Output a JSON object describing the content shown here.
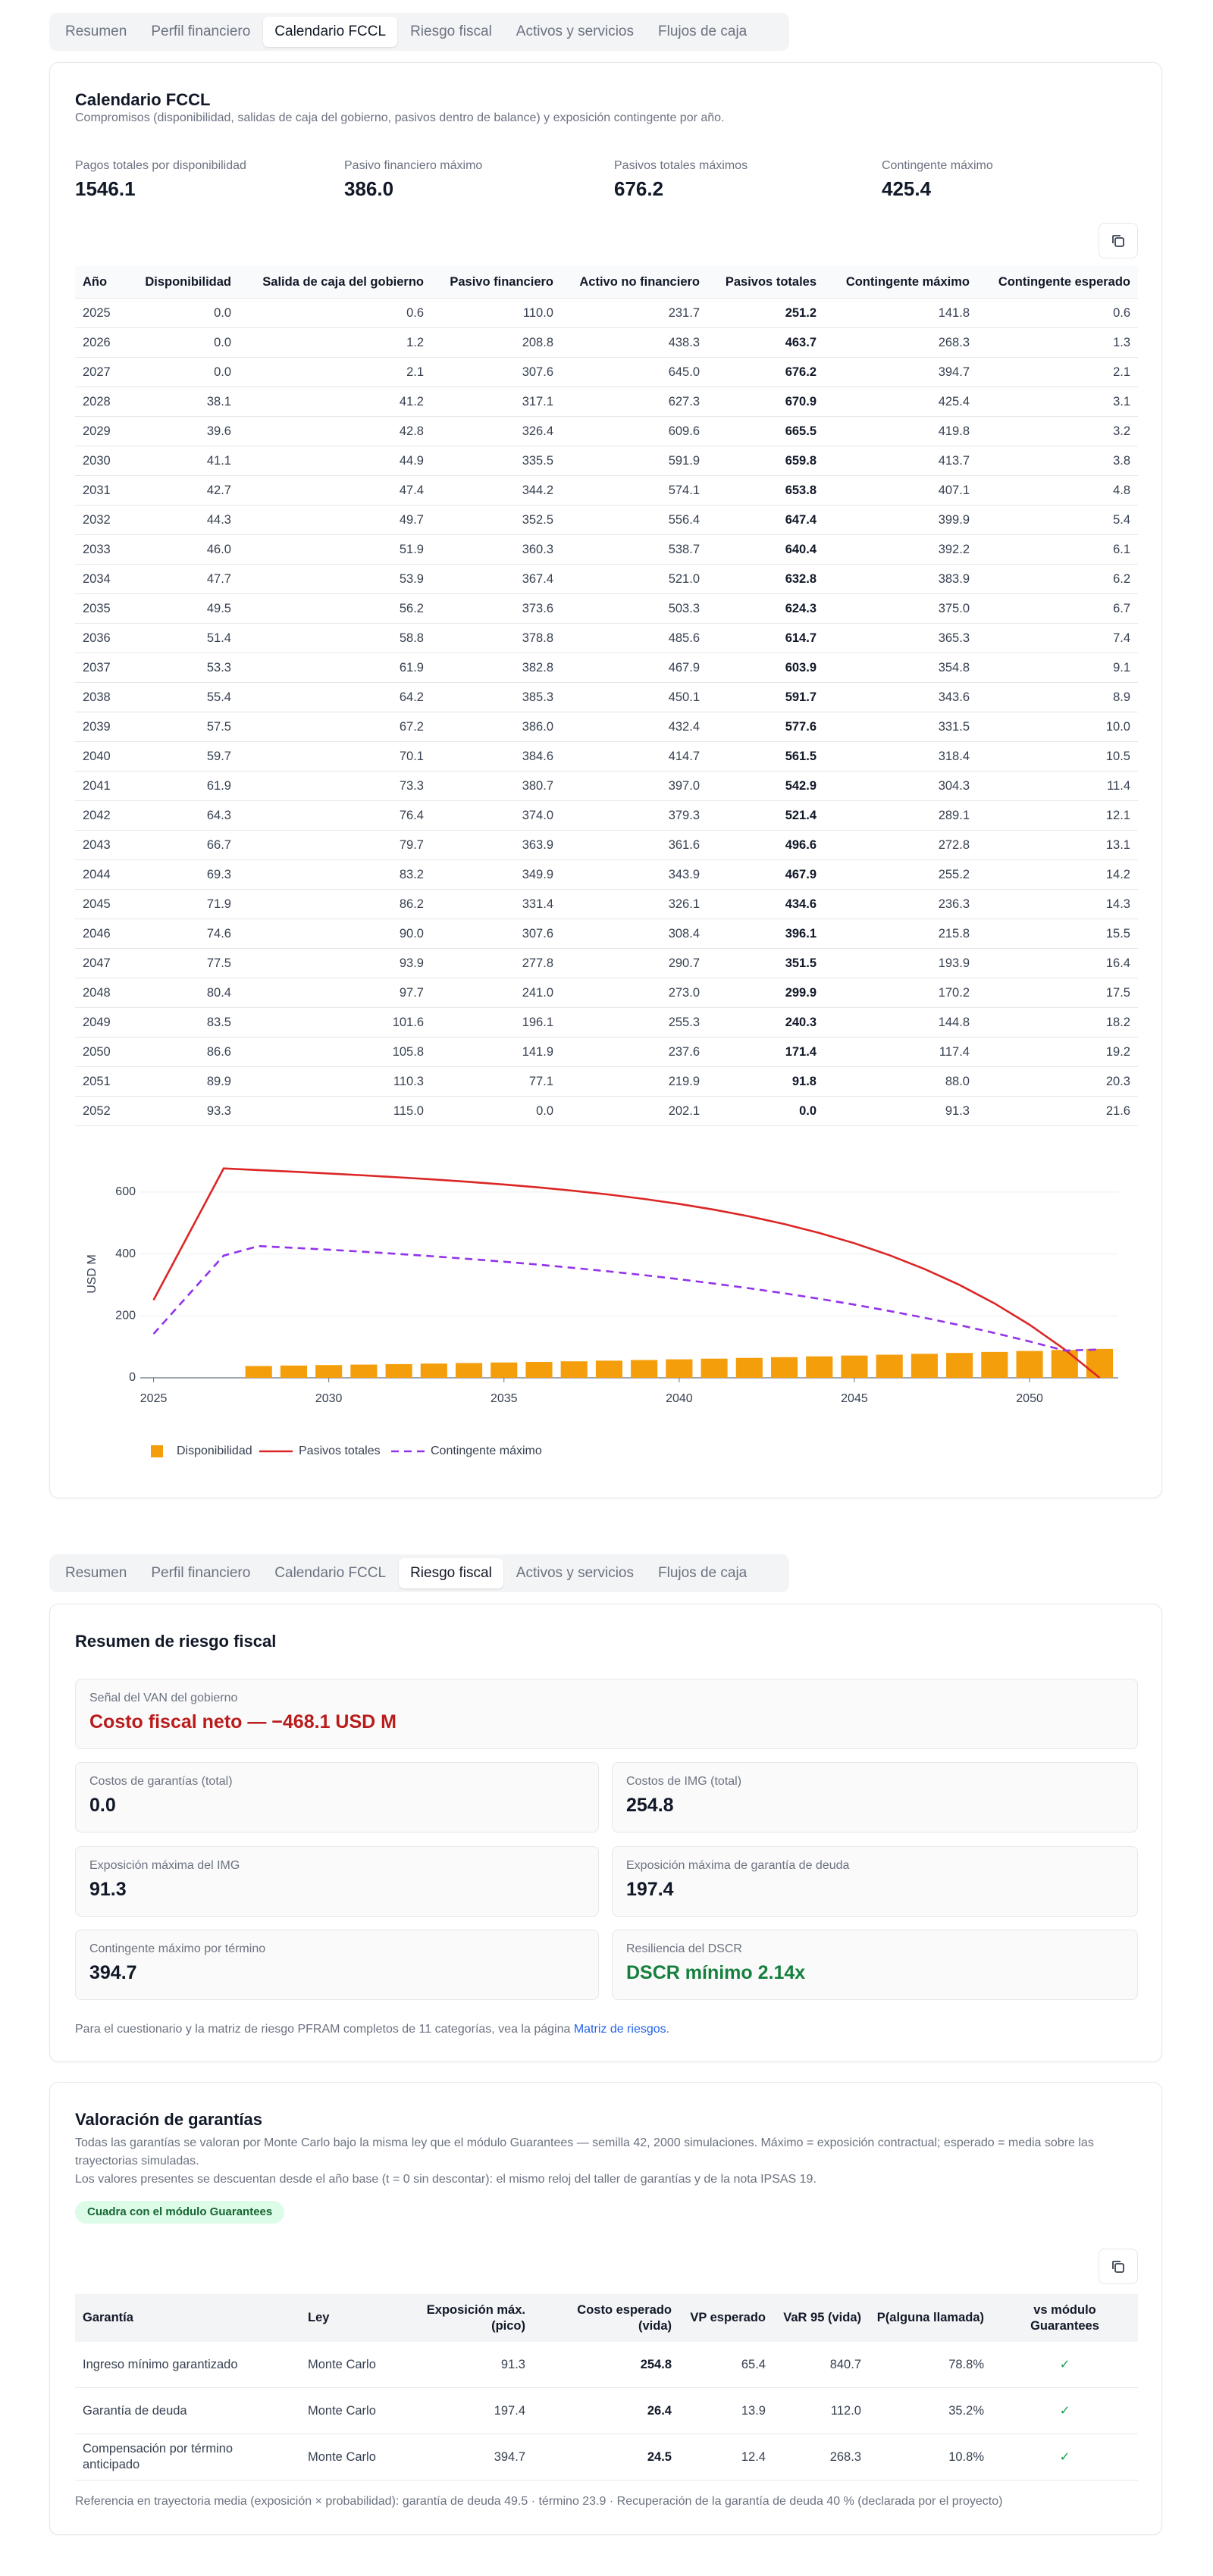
{
  "tabs_calendar": [
    {
      "label": "Resumen",
      "active": false
    },
    {
      "label": "Perfil financiero",
      "active": false
    },
    {
      "label": "Calendario FCCL",
      "active": true
    },
    {
      "label": "Riesgo fiscal",
      "active": false
    },
    {
      "label": "Activos y servicios",
      "active": false
    },
    {
      "label": "Flujos de caja",
      "active": false
    }
  ],
  "calendar": {
    "title": "Calendario FCCL",
    "subtitle": "Compromisos (disponibilidad, salidas de caja del gobierno, pasivos dentro de balance) y exposición contingente por año.",
    "stats": [
      {
        "label": "Pagos totales por disponibilidad",
        "value": "1546.1"
      },
      {
        "label": "Pasivo financiero máximo",
        "value": "386.0"
      },
      {
        "label": "Pasivos totales máximos",
        "value": "676.2"
      },
      {
        "label": "Contingente máximo",
        "value": "425.4"
      }
    ],
    "table": {
      "headers": [
        "Año",
        "Disponibilidad",
        "Salida de caja del gobierno",
        "Pasivo financiero",
        "Activo no financiero",
        "Pasivos totales",
        "Contingente máximo",
        "Contingente esperado"
      ],
      "rows": [
        [
          "2025",
          "0.0",
          "0.6",
          "110.0",
          "231.7",
          "251.2",
          "141.8",
          "0.6"
        ],
        [
          "2026",
          "0.0",
          "1.2",
          "208.8",
          "438.3",
          "463.7",
          "268.3",
          "1.3"
        ],
        [
          "2027",
          "0.0",
          "2.1",
          "307.6",
          "645.0",
          "676.2",
          "394.7",
          "2.1"
        ],
        [
          "2028",
          "38.1",
          "41.2",
          "317.1",
          "627.3",
          "670.9",
          "425.4",
          "3.1"
        ],
        [
          "2029",
          "39.6",
          "42.8",
          "326.4",
          "609.6",
          "665.5",
          "419.8",
          "3.2"
        ],
        [
          "2030",
          "41.1",
          "44.9",
          "335.5",
          "591.9",
          "659.8",
          "413.7",
          "3.8"
        ],
        [
          "2031",
          "42.7",
          "47.4",
          "344.2",
          "574.1",
          "653.8",
          "407.1",
          "4.8"
        ],
        [
          "2032",
          "44.3",
          "49.7",
          "352.5",
          "556.4",
          "647.4",
          "399.9",
          "5.4"
        ],
        [
          "2033",
          "46.0",
          "51.9",
          "360.3",
          "538.7",
          "640.4",
          "392.2",
          "6.1"
        ],
        [
          "2034",
          "47.7",
          "53.9",
          "367.4",
          "521.0",
          "632.8",
          "383.9",
          "6.2"
        ],
        [
          "2035",
          "49.5",
          "56.2",
          "373.6",
          "503.3",
          "624.3",
          "375.0",
          "6.7"
        ],
        [
          "2036",
          "51.4",
          "58.8",
          "378.8",
          "485.6",
          "614.7",
          "365.3",
          "7.4"
        ],
        [
          "2037",
          "53.3",
          "61.9",
          "382.8",
          "467.9",
          "603.9",
          "354.8",
          "9.1"
        ],
        [
          "2038",
          "55.4",
          "64.2",
          "385.3",
          "450.1",
          "591.7",
          "343.6",
          "8.9"
        ],
        [
          "2039",
          "57.5",
          "67.2",
          "386.0",
          "432.4",
          "577.6",
          "331.5",
          "10.0"
        ],
        [
          "2040",
          "59.7",
          "70.1",
          "384.6",
          "414.7",
          "561.5",
          "318.4",
          "10.5"
        ],
        [
          "2041",
          "61.9",
          "73.3",
          "380.7",
          "397.0",
          "542.9",
          "304.3",
          "11.4"
        ],
        [
          "2042",
          "64.3",
          "76.4",
          "374.0",
          "379.3",
          "521.4",
          "289.1",
          "12.1"
        ],
        [
          "2043",
          "66.7",
          "79.7",
          "363.9",
          "361.6",
          "496.6",
          "272.8",
          "13.1"
        ],
        [
          "2044",
          "69.3",
          "83.2",
          "349.9",
          "343.9",
          "467.9",
          "255.2",
          "14.2"
        ],
        [
          "2045",
          "71.9",
          "86.2",
          "331.4",
          "326.1",
          "434.6",
          "236.3",
          "14.3"
        ],
        [
          "2046",
          "74.6",
          "90.0",
          "307.6",
          "308.4",
          "396.1",
          "215.8",
          "15.5"
        ],
        [
          "2047",
          "77.5",
          "93.9",
          "277.8",
          "290.7",
          "351.5",
          "193.9",
          "16.4"
        ],
        [
          "2048",
          "80.4",
          "97.7",
          "241.0",
          "273.0",
          "299.9",
          "170.2",
          "17.5"
        ],
        [
          "2049",
          "83.5",
          "101.6",
          "196.1",
          "255.3",
          "240.3",
          "144.8",
          "18.2"
        ],
        [
          "2050",
          "86.6",
          "105.8",
          "141.9",
          "237.6",
          "171.4",
          "117.4",
          "19.2"
        ],
        [
          "2051",
          "89.9",
          "110.3",
          "77.1",
          "219.9",
          "91.8",
          "88.0",
          "20.3"
        ],
        [
          "2052",
          "93.3",
          "115.0",
          "0.0",
          "202.1",
          "0.0",
          "91.3",
          "21.6"
        ]
      ]
    }
  },
  "chart_data": {
    "type": "combo",
    "ylabel": "USD M",
    "xlim": [
      2024.62,
      2052.53
    ],
    "xticks": [
      2025,
      2030,
      2035,
      2040,
      2045,
      2050
    ],
    "ylim": [
      0,
      700
    ],
    "yticks": [
      0,
      200,
      400,
      600
    ],
    "grid": true,
    "series": [
      {
        "name": "Disponibilidad",
        "color": "#f59e0b",
        "style": "bar"
      },
      {
        "name": "Pasivos totales",
        "color": "#dc2626",
        "style": "solid"
      },
      {
        "name": "Contingente máximo",
        "color": "#9333ea",
        "style": "dashed"
      }
    ]
  },
  "tabs_risk": [
    {
      "label": "Resumen",
      "active": false
    },
    {
      "label": "Perfil financiero",
      "active": false
    },
    {
      "label": "Calendario FCCL",
      "active": false
    },
    {
      "label": "Riesgo fiscal",
      "active": true
    },
    {
      "label": "Activos y servicios",
      "active": false
    },
    {
      "label": "Flujos de caja",
      "active": false
    }
  ],
  "risk": {
    "title": "Resumen de riesgo fiscal",
    "signal": {
      "label": "Señal del VAN del gobierno",
      "value": "Costo fiscal neto — −468.1 USD M",
      "tone": "red"
    },
    "cards": [
      {
        "label": "Costos de garantías (total)",
        "value": "0.0",
        "tone": "default"
      },
      {
        "label": "Costos de IMG (total)",
        "value": "254.8",
        "tone": "default"
      },
      {
        "label": "Exposición máxima del IMG",
        "value": "91.3",
        "tone": "default"
      },
      {
        "label": "Exposición máxima de garantía de deuda",
        "value": "197.4",
        "tone": "default"
      },
      {
        "label": "Contingente máximo por término",
        "value": "394.7",
        "tone": "default"
      },
      {
        "label": "Resiliencia del DSCR",
        "value": "DSCR mínimo 2.14x",
        "tone": "green"
      }
    ],
    "note": {
      "before": "Para el cuestionario y la matriz de riesgo PFRAM completos de 11 categorías, vea la página ",
      "link": "Matriz de riesgos",
      "after": "."
    }
  },
  "guarantees": {
    "title": "Valoración de garantías",
    "descriptions": [
      "Todas las garantías se valoran por Monte Carlo bajo la misma ley que el módulo Guarantees — semilla 42, 2000 simulaciones. Máximo = exposición contractual; esperado = media sobre las trayectorias simuladas.",
      "Los valores presentes se descuentan desde el año base (t = 0 sin descontar): el mismo reloj del taller de garantías y de la nota IPSAS 19."
    ],
    "badge": "Cuadra con el módulo Guarantees",
    "table": {
      "headers": [
        "Garantía",
        "Ley",
        "Exposición máx. (pico)",
        "Costo esperado (vida)",
        "VP esperado",
        "VaR 95 (vida)",
        "P(alguna llamada)",
        "vs módulo Guarantees"
      ],
      "rows": [
        [
          "Ingreso mínimo garantizado",
          "Monte Carlo",
          "91.3",
          "254.8",
          "65.4",
          "840.7",
          "78.8%",
          "✓"
        ],
        [
          "Garantía de deuda",
          "Monte Carlo",
          "197.4",
          "26.4",
          "13.9",
          "112.0",
          "35.2%",
          "✓"
        ],
        [
          "Compensación por término anticipado",
          "Monte Carlo",
          "394.7",
          "24.5",
          "12.4",
          "268.3",
          "10.8%",
          "✓"
        ]
      ]
    },
    "footnote": "Referencia en trayectoria media (exposición × probabilidad): garantía de deuda 49.5 · término 23.9 · Recuperación de la garantía de deuda 40 % (declarada por el proyecto)"
  }
}
